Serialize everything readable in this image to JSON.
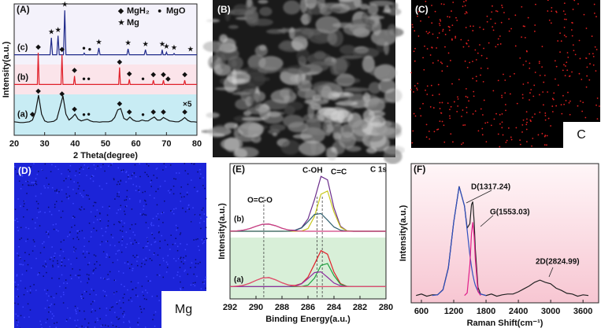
{
  "chart_data": [
    {
      "type": "line",
      "panel_label": "(A)",
      "x_label": "2 Theta(degree)",
      "y_label": "Intensity(a.u.)",
      "xlim": [
        20,
        80
      ],
      "xticks": [
        20,
        30,
        40,
        50,
        60,
        70,
        80
      ],
      "ylim": [
        0,
        31
      ],
      "legend": [
        {
          "symbol": "◆",
          "label": "MgH₂"
        },
        {
          "symbol": "●",
          "label": "MgO"
        },
        {
          "symbol": "★",
          "label": "Mg"
        }
      ],
      "annotations": [
        "×5"
      ],
      "series": [
        {
          "name": "(c)",
          "color": "#1f2a8a",
          "x": [
            20,
            31.8,
            32.2,
            32.6,
            34,
            34.4,
            34.8,
            36.2,
            36.6,
            37,
            42.7,
            43,
            43.3,
            47.4,
            47.8,
            48.2,
            57,
            57.4,
            57.8,
            62.7,
            63.1,
            63.5,
            68.3,
            68.6,
            68.9,
            69.7,
            70,
            70.3,
            72.2,
            72.5,
            72.8,
            80
          ],
          "values": [
            19,
            19,
            23,
            19,
            19,
            23.5,
            19,
            19,
            29.5,
            19,
            19,
            19.4,
            19,
            19,
            20.6,
            19,
            19,
            20.4,
            19,
            19,
            20.2,
            19,
            19,
            20.2,
            19,
            19,
            19.6,
            19,
            19,
            19.3,
            19,
            19
          ],
          "peaks": [
            [],
            [
              42.9,
              44.8
            ],
            [
              32.2,
              34.4,
              36.6,
              47.8,
              57.4,
              63.1,
              68.6,
              70,
              72.5,
              77.9
            ]
          ]
        },
        {
          "name": "(b)",
          "color": "#e0202a",
          "x": [
            20,
            27.6,
            27.9,
            28.2,
            35.4,
            35.7,
            36,
            39.5,
            39.8,
            40.1,
            54.3,
            54.6,
            54.9,
            57.5,
            57.8,
            58.1,
            65.4,
            65.7,
            66,
            68.7,
            69,
            69.3,
            75.7,
            76,
            76.3,
            80
          ],
          "values": [
            12,
            12,
            19.5,
            12,
            12,
            19,
            12,
            12,
            14,
            12,
            12,
            16,
            12,
            12,
            13.2,
            12,
            12,
            13,
            12,
            12,
            13,
            12,
            12,
            13,
            12,
            12
          ],
          "peaks": [
            [
              27.9,
              35.7,
              39.8,
              54.6,
              57.8,
              65.7,
              69,
              70.5,
              76
            ],
            [
              42.9,
              44.5,
              62.3
            ],
            []
          ]
        },
        {
          "name": "(a)",
          "color": "#111111",
          "x": [
            20,
            21,
            22,
            23,
            24,
            25,
            26,
            27,
            28,
            29,
            30,
            31,
            32,
            33,
            34,
            35,
            36,
            37,
            38,
            39,
            40,
            41,
            42,
            43,
            44,
            45,
            46,
            47,
            48,
            49,
            50,
            51,
            52,
            53,
            54,
            55,
            56,
            57,
            58,
            59,
            60,
            61,
            62,
            63,
            64,
            65,
            66,
            67,
            68,
            69,
            70,
            71,
            72,
            73,
            74,
            75,
            76,
            77,
            78,
            79,
            80
          ],
          "values": [
            3.2,
            3.1,
            3.0,
            3.0,
            3.1,
            3.2,
            3.6,
            5.5,
            9.5,
            5.0,
            3.4,
            3.1,
            3.2,
            3.3,
            3.8,
            6.5,
            9.3,
            5.0,
            3.6,
            4.2,
            5.0,
            3.8,
            3.4,
            3.6,
            3.8,
            3.4,
            3.2,
            3.2,
            3.1,
            3.2,
            3.2,
            3.2,
            3.4,
            4.2,
            6.0,
            6.3,
            4.0,
            3.6,
            4.3,
            3.6,
            3.3,
            3.3,
            3.6,
            3.4,
            3.4,
            3.9,
            4.3,
            3.6,
            3.6,
            4.2,
            3.8,
            3.4,
            3.3,
            3.2,
            3.2,
            3.6,
            4.2,
            3.5,
            3.2,
            3.2,
            3.1
          ],
          "peaks": [
            [
              26,
              27.9,
              35.7,
              39.8,
              54.6,
              57.8,
              65.7,
              69,
              76
            ],
            [
              42.9,
              44.5,
              62.3
            ],
            []
          ]
        }
      ]
    },
    {
      "type": "line",
      "panel_label": "(E)",
      "x_label": "Binding Energy(a.u.)",
      "y_label": "Intensity(a.u.)",
      "xlim": [
        292,
        280
      ],
      "xticks": [
        292,
        290,
        288,
        286,
        284,
        282,
        280
      ],
      "ylim": [
        0,
        22
      ],
      "annotations": [
        "O=C-O",
        "C-OH",
        "C=C",
        "C 1s",
        "(b)",
        "(a)"
      ],
      "reference_lines": [
        289.4,
        285.3,
        284.9
      ],
      "x": [
        292,
        291.5,
        291,
        290.5,
        290,
        289.5,
        289,
        288.5,
        288,
        287.5,
        287,
        286.5,
        286,
        285.5,
        285,
        284.5,
        284,
        283.5,
        283,
        282.5,
        282,
        281.5,
        281,
        280.5,
        280
      ],
      "series": [
        {
          "color": "#6a2c8a",
          "values": [
            11.01,
            11.05,
            11.16,
            11.42,
            11.81,
            12.14,
            12.17,
            11.89,
            11.49,
            11.21,
            11.17,
            11.58,
            12.99,
            16.17,
            19.91,
            19.37,
            14.81,
            11.81,
            11.08,
            11,
            11,
            11,
            11,
            11,
            11
          ]
        },
        {
          "color": "#c8c81e",
          "values": [
            11,
            11,
            11,
            11,
            11,
            11,
            11,
            11,
            11,
            11,
            11,
            11.03,
            11.43,
            13.43,
            17.03,
            17.55,
            14.12,
            11.65,
            11.06,
            11,
            11,
            11,
            11,
            11,
            11
          ]
        },
        {
          "color": "#2f5f6f",
          "values": [
            11,
            11,
            11,
            11,
            11,
            11,
            11,
            11,
            11,
            11.01,
            11.11,
            11.54,
            12.56,
            13.74,
            13.88,
            12.82,
            11.69,
            11.16,
            11.02,
            11,
            11,
            11,
            11,
            11,
            11
          ]
        },
        {
          "color": "#d04080",
          "values": [
            11.01,
            11.05,
            11.16,
            11.42,
            11.81,
            12.14,
            12.17,
            11.89,
            11.49,
            11.2,
            11.06,
            11.01,
            11,
            11,
            11,
            11,
            11,
            11,
            11,
            11,
            11,
            11,
            11,
            11,
            11
          ]
        },
        {
          "color": "#e0202a",
          "values": [
            2.01,
            2.06,
            2.2,
            2.53,
            3.01,
            3.42,
            3.46,
            3.11,
            2.62,
            2.26,
            2.17,
            2.49,
            3.54,
            5.67,
            7.85,
            7.26,
            4.36,
            2.5,
            2.05,
            2,
            2,
            2,
            2,
            2,
            2
          ]
        },
        {
          "color": "#20a040",
          "values": [
            2,
            2,
            2,
            2,
            2,
            2,
            2,
            2,
            2,
            2,
            2,
            2.02,
            2.24,
            3.39,
            5.45,
            5.74,
            3.78,
            2.37,
            2.03,
            2,
            2,
            2,
            2,
            2,
            2
          ]
        },
        {
          "color": "#9030a0",
          "values": [
            2,
            2,
            2,
            2,
            2,
            2,
            2,
            2,
            2,
            2.01,
            2.09,
            2.45,
            3.3,
            4.28,
            4.4,
            3.52,
            2.58,
            2.13,
            2.02,
            2,
            2,
            2,
            2,
            2,
            2
          ]
        },
        {
          "color": "#e05070",
          "values": [
            2.01,
            2.06,
            2.2,
            2.53,
            3.01,
            3.42,
            3.46,
            3.11,
            2.62,
            2.25,
            2.08,
            2.02,
            2,
            2,
            2,
            2,
            2,
            2,
            2,
            2,
            2,
            2,
            2,
            2,
            2
          ]
        }
      ]
    },
    {
      "type": "line",
      "panel_label": "(F)",
      "x_label": "Raman Shift(cm⁻¹)",
      "y_label": "Intensity(a.u.)",
      "xlim": [
        410,
        3890
      ],
      "xticks": [
        600,
        1200,
        1800,
        2400,
        3000,
        3600
      ],
      "ylim": [
        0.5,
        10
      ],
      "annotations": [
        "D(1317.24)",
        "G(1553.03)",
        "2D(2824.99)"
      ],
      "series": [
        {
          "color": "#222222",
          "x": [
            500,
            600,
            700,
            800,
            900,
            1000,
            1100,
            1200,
            1300,
            1400,
            1450,
            1500,
            1530,
            1553,
            1580,
            1600,
            1650,
            1700,
            1800,
            1900,
            2000,
            2100,
            2200,
            2300,
            2400,
            2500,
            2600,
            2700,
            2800,
            2900,
            3000,
            3100,
            3200,
            3300,
            3400,
            3500,
            3600,
            3700
          ],
          "values": [
            1.0,
            1.1,
            0.95,
            1.05,
            1.05,
            1.4,
            2.9,
            6.0,
            8.45,
            7.1,
            5.6,
            5.9,
            7.2,
            7.4,
            6.0,
            4.2,
            1.55,
            1.1,
            1.0,
            1.1,
            0.95,
            1.05,
            1.1,
            1.1,
            1.25,
            1.45,
            1.65,
            1.9,
            2.05,
            1.9,
            1.8,
            1.5,
            1.35,
            1.15,
            1.1,
            0.95,
            1.05,
            1.0
          ]
        },
        {
          "color": "#3050c0",
          "x": [
            800,
            900,
            1000,
            1100,
            1200,
            1300,
            1400,
            1450,
            1500,
            1530,
            1553,
            1580,
            1600,
            1650,
            1700,
            1800
          ],
          "values": [
            1,
            1.05,
            1.38,
            2.86,
            6.0,
            8.43,
            7.11,
            5.45,
            3.78,
            2.95,
            2.43,
            1.98,
            1.7,
            1.29,
            1.1,
            1.0
          ]
        },
        {
          "color": "#e0208a",
          "x": [
            1400,
            1450,
            1500,
            1530,
            1553,
            1580,
            1600,
            1650,
            1700
          ],
          "values": [
            1,
            1.18,
            3.08,
            5.25,
            6,
            5,
            3.5,
            1.27,
            1.0
          ]
        }
      ]
    }
  ],
  "images": [
    {
      "label": "(B)"
    },
    {
      "label": "(C)",
      "element": "C"
    },
    {
      "label": "(D)",
      "element": "Mg"
    }
  ]
}
